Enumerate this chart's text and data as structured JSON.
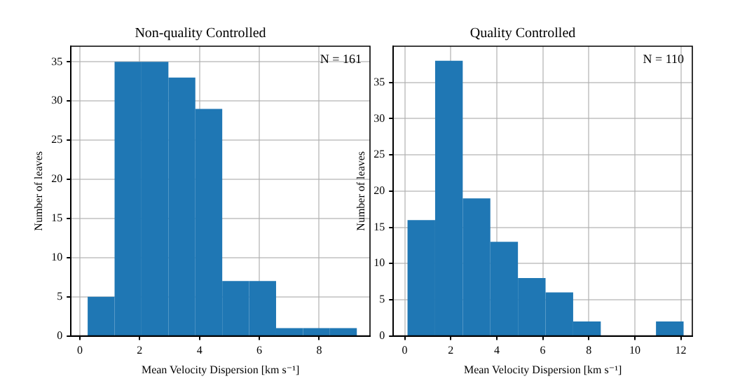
{
  "chart_data": [
    {
      "type": "histogram",
      "title": "Non-quality Controlled",
      "xlabel": "Mean Velocity Dispersion [km s⁻¹]",
      "ylabel": "Number of leaves",
      "bins": [
        0.26,
        1.16,
        2.06,
        2.96,
        3.86,
        4.76,
        5.66,
        6.56,
        7.46,
        8.36,
        9.26
      ],
      "values": [
        5,
        35,
        35,
        33,
        29,
        7,
        7,
        1,
        1,
        1
      ],
      "color": "#1f77b4",
      "xlim": [
        -0.3,
        9.7
      ],
      "xticks": [
        0,
        2,
        4,
        6,
        8
      ],
      "ylim": [
        0,
        37
      ],
      "yticks": [
        0,
        5,
        10,
        15,
        20,
        25,
        30,
        35
      ],
      "grid": true,
      "annotations": [
        "N = 161"
      ]
    },
    {
      "type": "histogram",
      "title": "Quality Controlled",
      "xlabel": "Mean Velocity Dispersion [km s⁻¹]",
      "ylabel": "Number of leaves",
      "bins": [
        0.12,
        1.32,
        2.52,
        3.72,
        4.92,
        6.12,
        7.32,
        8.52,
        9.72,
        10.92,
        12.12
      ],
      "values": [
        16,
        38,
        19,
        13,
        8,
        6,
        2,
        0,
        0,
        2
      ],
      "color": "#1f77b4",
      "xlim": [
        -0.5,
        12.5
      ],
      "xticks": [
        0,
        2,
        4,
        6,
        8,
        10,
        12
      ],
      "ylim": [
        0,
        40
      ],
      "yticks": [
        0,
        5,
        10,
        15,
        20,
        25,
        30,
        35
      ],
      "grid": true,
      "annotations": [
        "N = 110"
      ]
    }
  ]
}
